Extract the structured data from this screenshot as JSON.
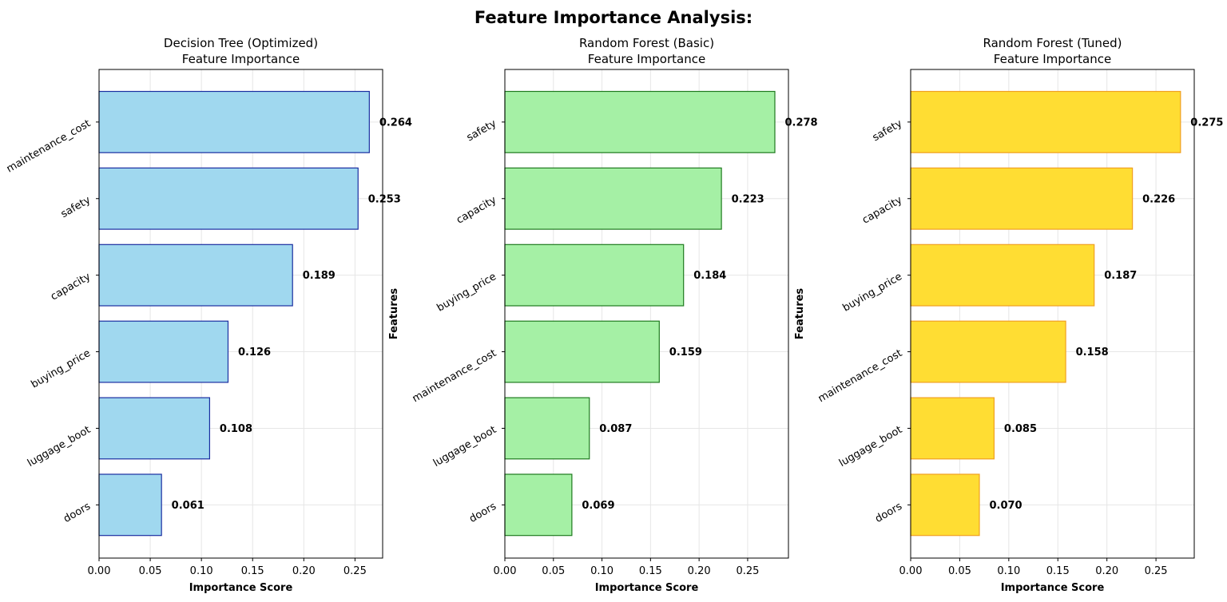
{
  "figure": {
    "title": "Feature Importance Analysis:"
  },
  "chart_data": [
    {
      "type": "bar",
      "orientation": "horizontal",
      "title": "Decision Tree (Optimized)",
      "subtitle": "Feature Importance",
      "xlabel": "Importance Score",
      "ylabel": "Features",
      "categories": [
        "maintenance_cost",
        "safety",
        "capacity",
        "buying_price",
        "luggage_boot",
        "doors"
      ],
      "values": [
        0.264,
        0.253,
        0.189,
        0.126,
        0.108,
        0.061
      ],
      "value_labels": [
        "0.264",
        "0.253",
        "0.189",
        "0.126",
        "0.108",
        "0.061"
      ],
      "xlim": [
        0,
        0.277
      ],
      "xticks": [
        0.0,
        0.05,
        0.1,
        0.15,
        0.2,
        0.25
      ],
      "xtick_labels": [
        "0.00",
        "0.05",
        "0.10",
        "0.15",
        "0.20",
        "0.25"
      ],
      "grid": true,
      "bar_color": "#a0d8ef",
      "edge_color": "#1a2ea0"
    },
    {
      "type": "bar",
      "orientation": "horizontal",
      "title": "Random Forest (Basic)",
      "subtitle": "Feature Importance",
      "xlabel": "Importance Score",
      "ylabel": "Features",
      "categories": [
        "safety",
        "capacity",
        "buying_price",
        "maintenance_cost",
        "luggage_boot",
        "doors"
      ],
      "values": [
        0.278,
        0.223,
        0.184,
        0.159,
        0.087,
        0.069
      ],
      "value_labels": [
        "0.278",
        "0.223",
        "0.184",
        "0.159",
        "0.087",
        "0.069"
      ],
      "xlim": [
        0,
        0.292
      ],
      "xticks": [
        0.0,
        0.05,
        0.1,
        0.15,
        0.2,
        0.25
      ],
      "xtick_labels": [
        "0.00",
        "0.05",
        "0.10",
        "0.15",
        "0.20",
        "0.25"
      ],
      "grid": true,
      "bar_color": "#a5f0a5",
      "edge_color": "#1f7a1f"
    },
    {
      "type": "bar",
      "orientation": "horizontal",
      "title": "Random Forest (Tuned)",
      "subtitle": "Feature Importance",
      "xlabel": "Importance Score",
      "ylabel": "",
      "categories": [
        "safety",
        "capacity",
        "buying_price",
        "maintenance_cost",
        "luggage_boot",
        "doors"
      ],
      "values": [
        0.275,
        0.226,
        0.187,
        0.158,
        0.085,
        0.07
      ],
      "value_labels": [
        "0.275",
        "0.226",
        "0.187",
        "0.158",
        "0.085",
        "0.070"
      ],
      "xlim": [
        0,
        0.289
      ],
      "xticks": [
        0.0,
        0.05,
        0.1,
        0.15,
        0.2,
        0.25
      ],
      "xtick_labels": [
        "0.00",
        "0.05",
        "0.10",
        "0.15",
        "0.20",
        "0.25"
      ],
      "grid": true,
      "bar_color": "#ffdd33",
      "edge_color": "#f0a020"
    }
  ]
}
